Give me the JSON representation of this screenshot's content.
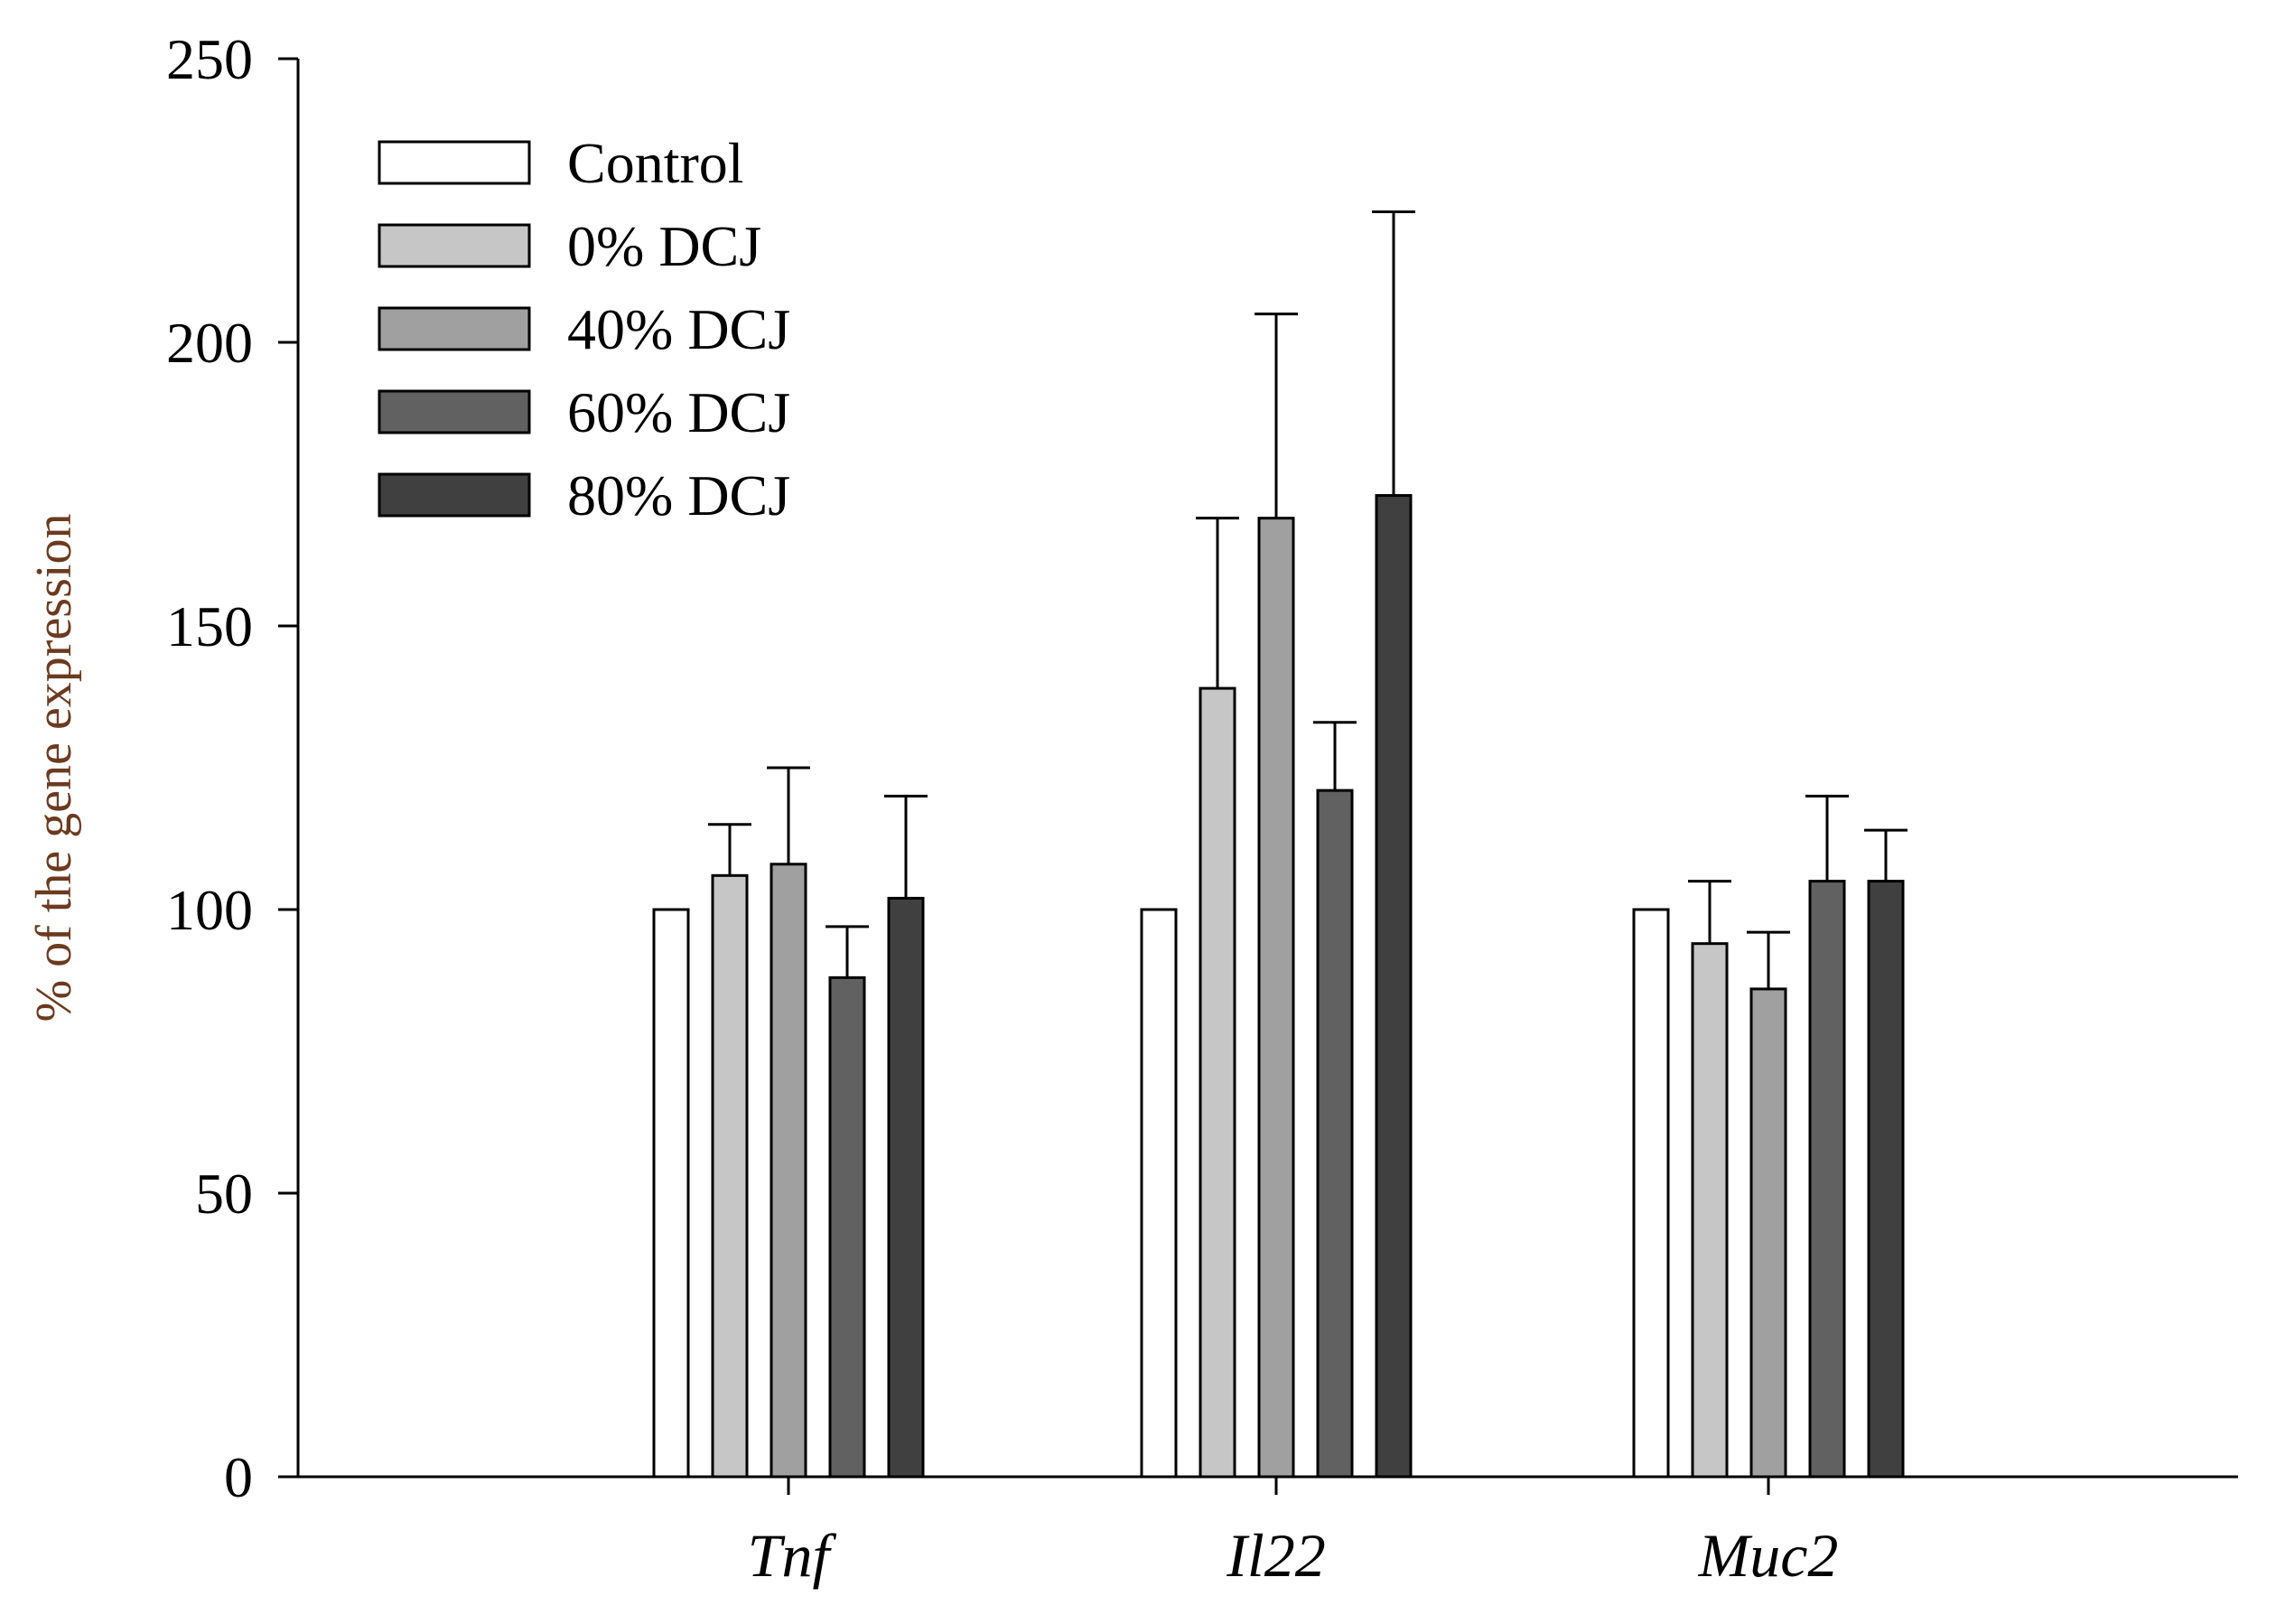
{
  "chart_data": {
    "type": "bar",
    "title": "",
    "xlabel": "",
    "ylabel": "% of the gene expression",
    "ylim": [
      0,
      250
    ],
    "yticks": [
      0,
      50,
      100,
      150,
      200,
      250
    ],
    "categories": [
      "Tnf",
      "Il22",
      "Muc2"
    ],
    "legend_position": "top-left",
    "grid": false,
    "series": [
      {
        "name": "Control",
        "color": "#ffffff",
        "values": [
          100,
          100,
          100
        ],
        "errors": [
          0,
          0,
          0
        ]
      },
      {
        "name": "0% DCJ",
        "color": "#c6c6c6",
        "values": [
          106,
          139,
          94
        ],
        "errors": [
          9,
          30,
          11
        ]
      },
      {
        "name": "40% DCJ",
        "color": "#a0a0a0",
        "values": [
          108,
          169,
          86
        ],
        "errors": [
          17,
          36,
          10
        ]
      },
      {
        "name": "60% DCJ",
        "color": "#616161",
        "values": [
          88,
          121,
          105
        ],
        "errors": [
          9,
          12,
          15
        ]
      },
      {
        "name": "80% DCJ",
        "color": "#404040",
        "values": [
          102,
          173,
          105
        ],
        "errors": [
          18,
          50,
          9
        ]
      }
    ]
  }
}
